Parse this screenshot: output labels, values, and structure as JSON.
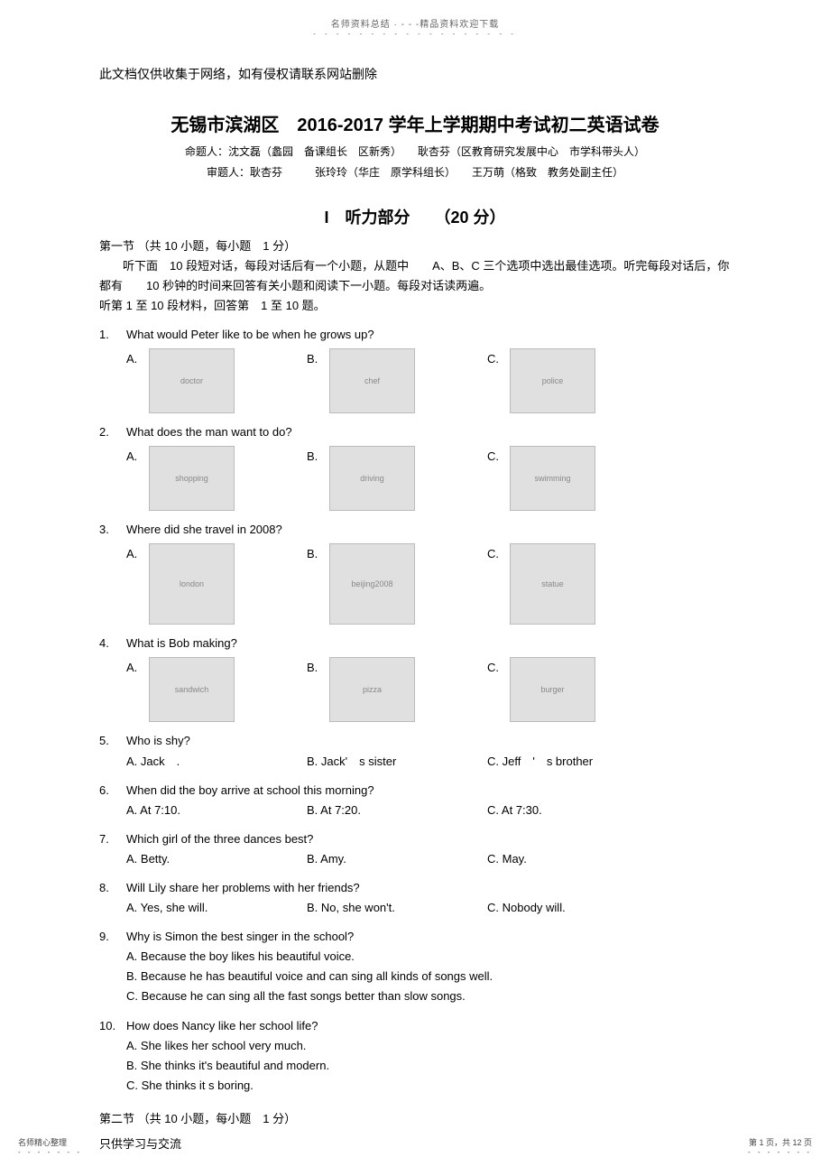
{
  "top_header": {
    "line1": "名师资料总结 · - - -精品资料欢迎下载",
    "dots": "- - - - - - - - - - - - - - - - - -"
  },
  "disclaimer": "此文档仅供收集于网络，如有侵权请联系网站删除",
  "exam_title": "无锡市滨湖区　2016-2017 学年上学期期中考试初二英语试卷",
  "author_line1": "命题人：沈文磊（蠡园　备课组长　区新秀）　　耿杏芬（区教育研究发展中心　市学科带头人）",
  "author_line2": "审题人：耿杏芬　　　张玲玲（华庄　原学科组长）　　王万萌（格致　教务处副主任）",
  "section_heading": "I　听力部分　　（20 分）",
  "subsection1_title": "第一节 （共 10 小题，每小题　1 分）",
  "intro1": "听下面　10 段短对话，每段对话后有一个小题，从题中　　A、B、C 三个选项中选出最佳选项。听完每段对话后，你都有　　10 秒钟的时间来回答有关小题和阅读下一小题。每段对话读两遍。",
  "intro2": "听第 1 至 10 段材料，回答第　1 至 10 题。",
  "questions": [
    {
      "num": "1.",
      "text": "What would Peter like to be when he grows up?",
      "type": "img",
      "imgs": [
        "A.",
        "B.",
        "C."
      ]
    },
    {
      "num": "2.",
      "text": "What does the man want to do?",
      "type": "img",
      "imgs": [
        "A.",
        "B.",
        "C."
      ]
    },
    {
      "num": "3.",
      "text": "Where did she travel in 2008?",
      "type": "img",
      "imgs": [
        "A.",
        "B.",
        "C."
      ],
      "larger": true
    },
    {
      "num": "4.",
      "text": "What is Bob making?",
      "type": "img",
      "imgs": [
        "A.",
        "B.",
        "C."
      ]
    },
    {
      "num": "5.",
      "text": "Who is shy?",
      "type": "text",
      "opts": [
        "A. Jack　.",
        "B. Jack'　s sister",
        "C. Jeff　'　s brother"
      ]
    },
    {
      "num": "6.",
      "text": "When did the boy arrive at school this morning?",
      "type": "text",
      "opts": [
        "A. At 7:10.",
        "B. At 7:20.",
        "C. At 7:30."
      ]
    },
    {
      "num": "7.",
      "text": "Which girl of the three dances best?",
      "type": "text",
      "opts": [
        "A. Betty.",
        "B. Amy.",
        "C. May."
      ]
    },
    {
      "num": "8.",
      "text": "Will Lily share her problems with her friends?",
      "type": "text",
      "opts": [
        "A. Yes, she will.",
        "B. No, she won't.",
        "C. Nobody will."
      ]
    },
    {
      "num": "9.",
      "text": "Why is Simon the best singer in the school?",
      "type": "lines",
      "lines": [
        "A. Because the boy likes his beautiful voice.",
        "B. Because he has beautiful voice and can sing all kinds of songs well.",
        "C. Because he can sing all the fast songs better than slow songs."
      ]
    },
    {
      "num": "10.",
      "text": "How does Nancy like her school life?",
      "type": "lines",
      "lines": [
        "A. She likes her school very much.",
        "B. She thinks it's beautiful and modern.",
        "C. She thinks it s boring."
      ]
    }
  ],
  "subsection2_title": "第二节 （共 10 小题，每小题　1 分）",
  "bottom_note": "只供学习与交流",
  "footer_left": {
    "l1": "名师精心整理",
    "dots": "- - - - - - -"
  },
  "footer_right": {
    "l1": "第 1 页，共 12 页",
    "dots": "- - - - - - -"
  },
  "img_placeholders": {
    "q1": [
      "doctor",
      "chef",
      "police"
    ],
    "q2": [
      "shopping",
      "driving",
      "swimming"
    ],
    "q3": [
      "london",
      "beijing2008",
      "statue"
    ],
    "q4": [
      "sandwich",
      "pizza",
      "burger"
    ]
  }
}
